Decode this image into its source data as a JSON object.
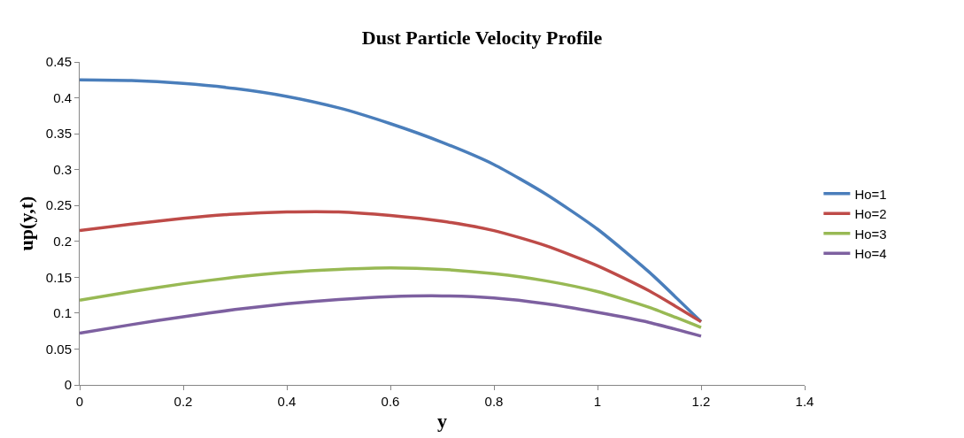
{
  "chart_data": {
    "type": "line",
    "title": "Dust Particle Velocity Profile",
    "xlabel": "y",
    "ylabel": "up(y,t)",
    "x": [
      0,
      0.1,
      0.2,
      0.3,
      0.4,
      0.5,
      0.6,
      0.7,
      0.8,
      0.9,
      1.0,
      1.1,
      1.2
    ],
    "series": [
      {
        "name": "Ho=1",
        "color": "#4a7ebb",
        "values": [
          0.425,
          0.424,
          0.42,
          0.413,
          0.402,
          0.386,
          0.364,
          0.338,
          0.307,
          0.266,
          0.217,
          0.157,
          0.088
        ]
      },
      {
        "name": "Ho=2",
        "color": "#be4b48",
        "values": [
          0.215,
          0.224,
          0.232,
          0.238,
          0.241,
          0.241,
          0.236,
          0.228,
          0.215,
          0.194,
          0.166,
          0.131,
          0.088
        ]
      },
      {
        "name": "Ho=3",
        "color": "#98b954",
        "values": [
          0.118,
          0.13,
          0.141,
          0.15,
          0.157,
          0.161,
          0.163,
          0.161,
          0.155,
          0.145,
          0.13,
          0.108,
          0.08
        ]
      },
      {
        "name": "Ho=4",
        "color": "#7d60a0",
        "values": [
          0.072,
          0.084,
          0.095,
          0.105,
          0.113,
          0.119,
          0.123,
          0.124,
          0.121,
          0.113,
          0.101,
          0.087,
          0.068
        ]
      }
    ],
    "xlim": [
      0,
      1.4
    ],
    "xticks": [
      0,
      0.2,
      0.4,
      0.6,
      0.8,
      1,
      1.2,
      1.4
    ],
    "ylim": [
      0,
      0.45
    ],
    "yticks": [
      0,
      0.05,
      0.1,
      0.15,
      0.2,
      0.25,
      0.3,
      0.35,
      0.4,
      0.45
    ],
    "grid": false,
    "legend": "right",
    "marker": "none",
    "line_style": "solid"
  }
}
